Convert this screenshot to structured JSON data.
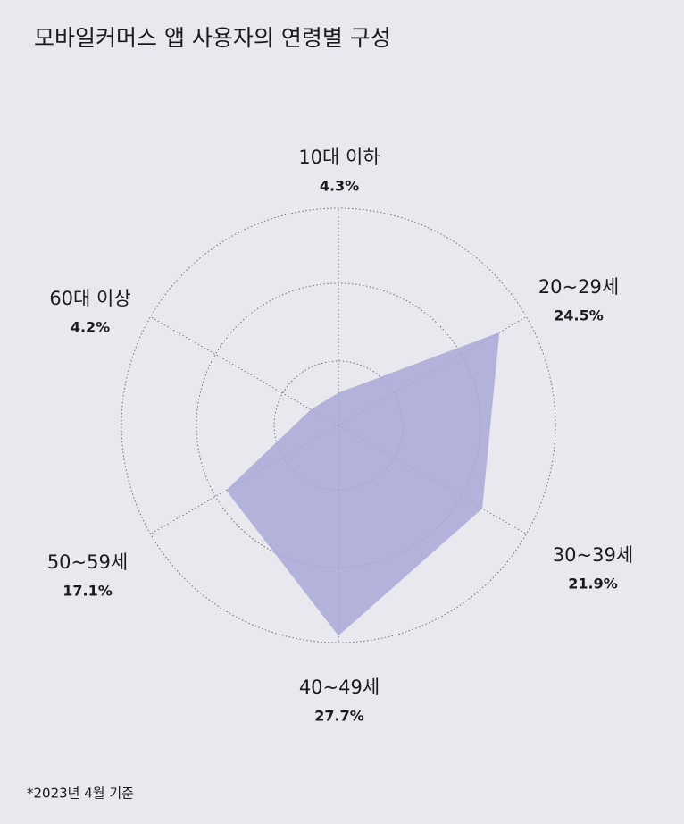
{
  "chart_data": {
    "type": "radar",
    "title": "모바일커머스 앱 사용자의 연령별 구성",
    "categories": [
      "10대 이하",
      "20~29세",
      "30~39세",
      "40~49세",
      "50~59세",
      "60대 이상"
    ],
    "values": [
      4.3,
      24.5,
      21.9,
      27.7,
      17.1,
      4.2
    ],
    "value_labels": [
      "4.3%",
      "24.5%",
      "21.9%",
      "27.7%",
      "17.1%",
      "4.2%"
    ],
    "color": "#a9a8d6",
    "rlim": [
      0,
      28.6
    ],
    "note": "*2023년 4월 기준"
  }
}
